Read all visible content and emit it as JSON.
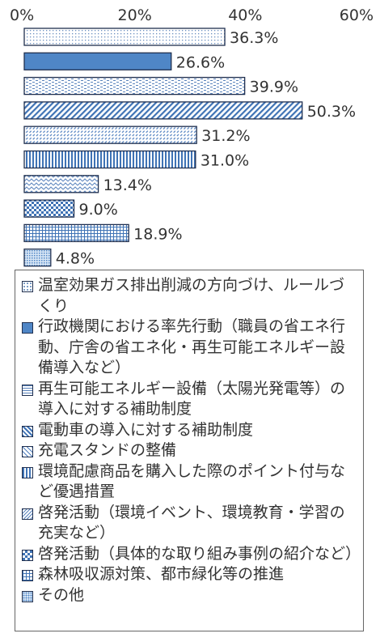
{
  "chart_data": {
    "type": "bar",
    "orientation": "horizontal",
    "xlim": [
      0,
      60
    ],
    "x_ticks": [
      "0%",
      "20%",
      "40%",
      "60%"
    ],
    "grid": false,
    "legend_placement": "bottom",
    "categories": [
      "温室効果ガス排出削減の方向づけ、ルールづくり",
      "行政機関における率先行動（職員の省エネ行動、庁舎の省エネ化・再生可能エネルギー設備導入など）",
      "再生可能エネルギー設備（太陽光発電等）の導入に対する補助制度",
      "電動車の導入に対する補助制度",
      "充電スタンドの整備",
      "環境配慮商品を購入した際のポイント付与など優遇措置",
      "啓発活動（環境イベント、環境教育・学習の充実など）",
      "啓発活動（具体的な取り組み事例の紹介など）",
      "森林吸収源対策、都市緑化等の推進",
      "その他"
    ],
    "values": [
      36.3,
      26.6,
      39.9,
      50.3,
      31.2,
      31.0,
      13.4,
      9.0,
      18.9,
      4.8
    ],
    "value_labels": [
      "36.3%",
      "26.6%",
      "39.9%",
      "50.3%",
      "31.2%",
      "31.0%",
      "13.4%",
      "9.0%",
      "18.9%",
      "4.8%"
    ],
    "patterns": [
      "dots",
      "solid-blue",
      "dashes",
      "diagonal",
      "dash-diagonal",
      "vertical",
      "zigzag",
      "checker",
      "grid",
      "dense-dots"
    ],
    "colors": {
      "border": "#1f2f4f",
      "blue": "#4f86c6",
      "light_blue": "#b9d3ee",
      "text": "#333333"
    }
  }
}
